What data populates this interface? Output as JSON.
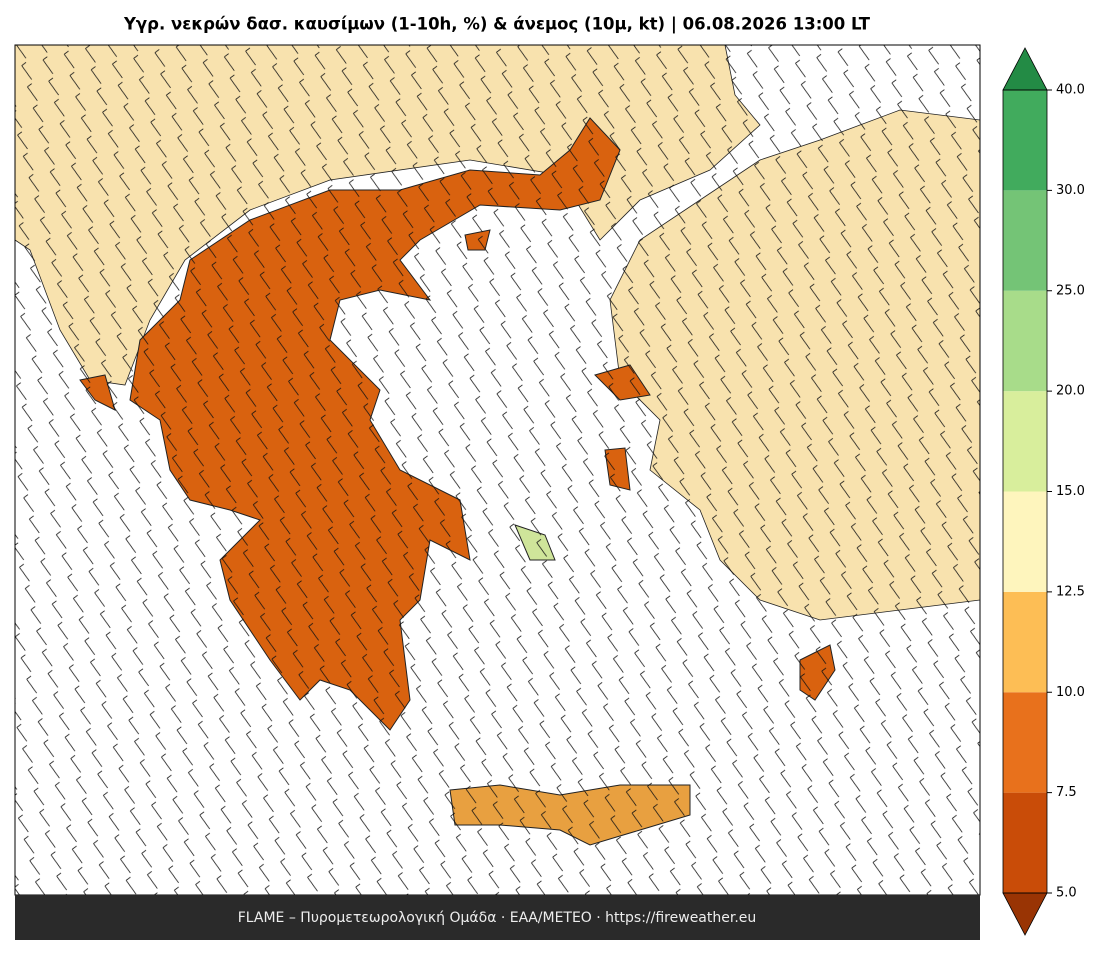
{
  "title": "Υγρ. νεκρών δασ. καυσίμων (1-10h, %) & άνεμος (10μ, kt)  |  06.08.2026 13:00 LT",
  "footer": "FLAME – Πυρομετεωρολογική Ομάδα · ΕΑΑ/METEO · https://fireweather.eu",
  "colorbar": {
    "ticks": [
      {
        "value": 5,
        "label": "5.0"
      },
      {
        "value": 7.5,
        "label": "7.5"
      },
      {
        "value": 10,
        "label": "10.0"
      },
      {
        "value": 12.5,
        "label": "12.5"
      },
      {
        "value": 15,
        "label": "15.0"
      },
      {
        "value": 20,
        "label": "20.0"
      },
      {
        "value": 25,
        "label": "25.0"
      },
      {
        "value": 30,
        "label": "30.0"
      },
      {
        "value": 40,
        "label": "40.0"
      }
    ],
    "colors": [
      "#c94c08",
      "#e8711c",
      "#fdbe55",
      "#fef5bd",
      "#d8ee9c",
      "#a8dc8a",
      "#74c476",
      "#41ab5d"
    ],
    "under_color": "#993404",
    "over_color": "#238b45"
  }
}
